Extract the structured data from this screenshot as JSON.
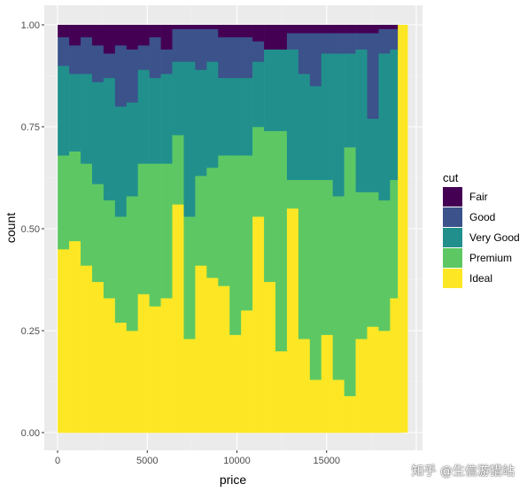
{
  "chart_data": {
    "type": "bar",
    "position": "fill",
    "xlabel": "price",
    "ylabel": "count",
    "xlim": [
      0,
      20000
    ],
    "ylim": [
      0,
      1
    ],
    "x_ticks": [
      0,
      5000,
      10000,
      15000
    ],
    "x_tick_labels": [
      "0",
      "5000",
      "10000",
      "15000"
    ],
    "y_ticks": [
      0,
      0.25,
      0.5,
      0.75,
      1
    ],
    "y_tick_labels": [
      "0.00",
      "0.25",
      "0.50",
      "0.75",
      "1.00"
    ],
    "grid": true,
    "legend": {
      "title": "cut",
      "position": "right",
      "entries": [
        "Fair",
        "Good",
        "Very Good",
        "Premium",
        "Ideal"
      ]
    },
    "colors": {
      "Fair": "#440154",
      "Good": "#3b528b",
      "Very Good": "#21908c",
      "Premium": "#5dc863",
      "Ideal": "#fde725",
      "panel_bg": "#ebebeb",
      "grid_major": "#ffffff",
      "grid_minor": "#f4f4f4"
    },
    "bin_width": 639,
    "bin_centers": [
      326,
      965,
      1604,
      2243,
      2882,
      3521,
      4160,
      4799,
      5438,
      6077,
      6716,
      7355,
      7994,
      8633,
      9272,
      9911,
      10550,
      11189,
      11828,
      12467,
      13106,
      13745,
      14384,
      15023,
      15662,
      16301,
      16940,
      17579,
      18218,
      18857
    ],
    "cumulative_order": [
      "Ideal",
      "Premium",
      "Very Good",
      "Good",
      "Fair"
    ],
    "cumulative_tops": {
      "Ideal": [
        0.45,
        0.47,
        0.41,
        0.37,
        0.33,
        0.27,
        0.25,
        0.34,
        0.31,
        0.33,
        0.56,
        0.23,
        0.41,
        0.38,
        0.36,
        0.24,
        0.3,
        0.53,
        0.37,
        0.2,
        0.55,
        0.23,
        0.13,
        0.24,
        0.13,
        0.09,
        0.23,
        0.26,
        0.25,
        0.33
      ],
      "Premium": [
        0.68,
        0.69,
        0.66,
        0.61,
        0.57,
        0.53,
        0.58,
        0.66,
        0.66,
        0.66,
        0.73,
        0.53,
        0.63,
        0.65,
        0.68,
        0.68,
        0.68,
        0.75,
        0.74,
        0.74,
        0.62,
        0.62,
        0.62,
        0.62,
        0.58,
        0.7,
        0.59,
        0.59,
        0.57,
        0.62
      ],
      "Very Good": [
        0.9,
        0.88,
        0.88,
        0.86,
        0.87,
        0.8,
        0.81,
        0.89,
        0.87,
        0.88,
        0.91,
        0.91,
        0.89,
        0.91,
        0.87,
        0.87,
        0.87,
        0.91,
        0.94,
        0.94,
        0.94,
        0.88,
        0.85,
        0.93,
        0.93,
        0.93,
        0.94,
        0.77,
        0.93,
        0.94
      ],
      "Good": [
        0.97,
        0.95,
        0.97,
        0.95,
        0.93,
        0.95,
        0.94,
        0.95,
        0.97,
        0.94,
        0.99,
        0.99,
        0.99,
        0.99,
        0.97,
        0.97,
        0.97,
        0.96,
        0.94,
        0.94,
        0.98,
        0.98,
        0.98,
        0.98,
        0.98,
        0.98,
        0.98,
        0.98,
        0.99,
        0.99
      ],
      "Fair": [
        1,
        1,
        1,
        1,
        1,
        1,
        1,
        1,
        1,
        1,
        1,
        1,
        1,
        1,
        1,
        1,
        1,
        1,
        1,
        1,
        1,
        1,
        1,
        1,
        1,
        1,
        1,
        1,
        1,
        1
      ]
    },
    "last_bin_center": 19250,
    "last_bin_width": 560,
    "last_bin_top": {
      "Ideal": 1.0
    }
  },
  "watermark": "知乎 @生信游猎站"
}
